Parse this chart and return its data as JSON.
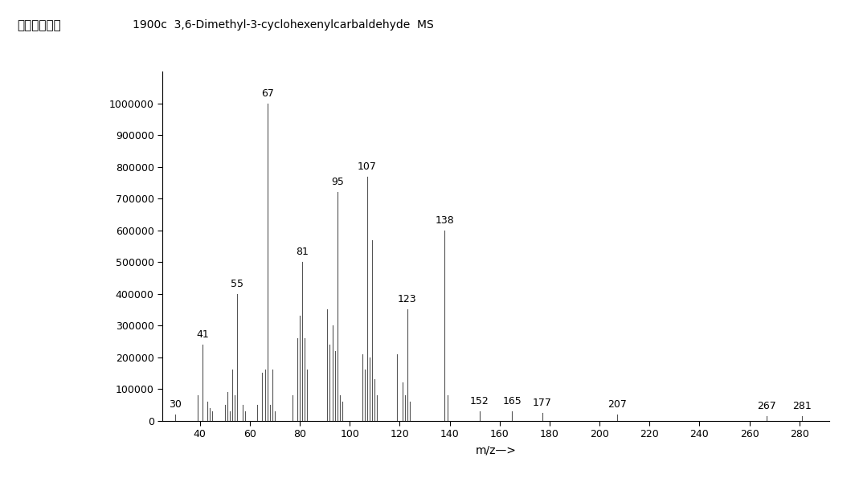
{
  "title": "1900c  3,6-Dimethyl-3-cyclohexenylcarbaldehyde  MS",
  "ylabel": "アバンダンス",
  "xlabel": "m/z—>",
  "xlim": [
    25,
    292
  ],
  "ylim": [
    0,
    1100000
  ],
  "xticks": [
    40,
    60,
    80,
    100,
    120,
    140,
    160,
    180,
    200,
    220,
    240,
    260,
    280
  ],
  "yticks": [
    0,
    100000,
    200000,
    300000,
    400000,
    500000,
    600000,
    700000,
    800000,
    900000,
    1000000
  ],
  "peaks": [
    {
      "mz": 30,
      "intensity": 20000,
      "label": "30"
    },
    {
      "mz": 39,
      "intensity": 80000,
      "label": ""
    },
    {
      "mz": 41,
      "intensity": 240000,
      "label": "41"
    },
    {
      "mz": 43,
      "intensity": 60000,
      "label": ""
    },
    {
      "mz": 44,
      "intensity": 40000,
      "label": ""
    },
    {
      "mz": 45,
      "intensity": 30000,
      "label": ""
    },
    {
      "mz": 50,
      "intensity": 50000,
      "label": ""
    },
    {
      "mz": 51,
      "intensity": 90000,
      "label": ""
    },
    {
      "mz": 52,
      "intensity": 30000,
      "label": ""
    },
    {
      "mz": 53,
      "intensity": 160000,
      "label": ""
    },
    {
      "mz": 54,
      "intensity": 80000,
      "label": ""
    },
    {
      "mz": 55,
      "intensity": 400000,
      "label": "55"
    },
    {
      "mz": 57,
      "intensity": 50000,
      "label": ""
    },
    {
      "mz": 58,
      "intensity": 30000,
      "label": ""
    },
    {
      "mz": 63,
      "intensity": 50000,
      "label": ""
    },
    {
      "mz": 65,
      "intensity": 150000,
      "label": ""
    },
    {
      "mz": 66,
      "intensity": 160000,
      "label": ""
    },
    {
      "mz": 67,
      "intensity": 1000000,
      "label": "67"
    },
    {
      "mz": 68,
      "intensity": 50000,
      "label": ""
    },
    {
      "mz": 69,
      "intensity": 160000,
      "label": ""
    },
    {
      "mz": 70,
      "intensity": 30000,
      "label": ""
    },
    {
      "mz": 77,
      "intensity": 80000,
      "label": ""
    },
    {
      "mz": 79,
      "intensity": 260000,
      "label": ""
    },
    {
      "mz": 80,
      "intensity": 330000,
      "label": ""
    },
    {
      "mz": 81,
      "intensity": 500000,
      "label": "81"
    },
    {
      "mz": 82,
      "intensity": 260000,
      "label": ""
    },
    {
      "mz": 83,
      "intensity": 160000,
      "label": ""
    },
    {
      "mz": 91,
      "intensity": 350000,
      "label": ""
    },
    {
      "mz": 92,
      "intensity": 240000,
      "label": ""
    },
    {
      "mz": 93,
      "intensity": 300000,
      "label": ""
    },
    {
      "mz": 94,
      "intensity": 220000,
      "label": ""
    },
    {
      "mz": 95,
      "intensity": 720000,
      "label": "95"
    },
    {
      "mz": 96,
      "intensity": 80000,
      "label": ""
    },
    {
      "mz": 97,
      "intensity": 60000,
      "label": ""
    },
    {
      "mz": 105,
      "intensity": 210000,
      "label": ""
    },
    {
      "mz": 106,
      "intensity": 160000,
      "label": ""
    },
    {
      "mz": 107,
      "intensity": 770000,
      "label": "107"
    },
    {
      "mz": 108,
      "intensity": 200000,
      "label": ""
    },
    {
      "mz": 109,
      "intensity": 570000,
      "label": ""
    },
    {
      "mz": 110,
      "intensity": 130000,
      "label": ""
    },
    {
      "mz": 111,
      "intensity": 80000,
      "label": ""
    },
    {
      "mz": 119,
      "intensity": 210000,
      "label": ""
    },
    {
      "mz": 121,
      "intensity": 120000,
      "label": ""
    },
    {
      "mz": 122,
      "intensity": 80000,
      "label": ""
    },
    {
      "mz": 123,
      "intensity": 350000,
      "label": "123"
    },
    {
      "mz": 124,
      "intensity": 60000,
      "label": ""
    },
    {
      "mz": 138,
      "intensity": 600000,
      "label": "138"
    },
    {
      "mz": 139,
      "intensity": 80000,
      "label": ""
    },
    {
      "mz": 152,
      "intensity": 30000,
      "label": "152"
    },
    {
      "mz": 165,
      "intensity": 30000,
      "label": "165"
    },
    {
      "mz": 177,
      "intensity": 25000,
      "label": "177"
    },
    {
      "mz": 207,
      "intensity": 20000,
      "label": "207"
    },
    {
      "mz": 267,
      "intensity": 15000,
      "label": "267"
    },
    {
      "mz": 281,
      "intensity": 15000,
      "label": "281"
    }
  ],
  "label_peaks": [
    30,
    41,
    55,
    67,
    81,
    95,
    107,
    123,
    138,
    152,
    165,
    177,
    207,
    267,
    281
  ],
  "line_color": "#555555",
  "background_color": "#ffffff",
  "label_fontsize": 9,
  "tick_fontsize": 9,
  "title_fontsize": 10,
  "ylabel_fontsize": 11
}
